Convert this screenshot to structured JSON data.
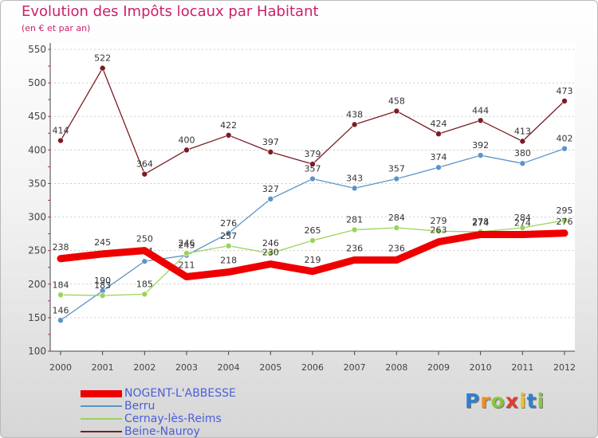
{
  "header": {
    "title": "Evolution des Impôts locaux par Habitant",
    "subtitle": "(en € et par an)"
  },
  "chart_data": {
    "type": "line",
    "title": "Evolution des Impôts locaux par Habitant",
    "subtitle": "(en € et par an)",
    "xlabel": "",
    "ylabel": "",
    "ylim": [
      100,
      550
    ],
    "yticks": [
      100,
      150,
      200,
      250,
      300,
      350,
      400,
      450,
      500,
      550
    ],
    "grid": "horizontal dashed",
    "legend_position": "bottom-left",
    "x": [
      "2000",
      "2001",
      "2002",
      "2003",
      "2004",
      "2005",
      "2006",
      "2007",
      "2008",
      "2009",
      "2010",
      "2011",
      "2012"
    ],
    "series": [
      {
        "name": "Beine-Nauroy",
        "color": "#7b1c24",
        "values": [
          414,
          522,
          364,
          400,
          422,
          397,
          379,
          438,
          458,
          424,
          444,
          413,
          473
        ]
      },
      {
        "name": "Berru",
        "color": "#5b94c8",
        "values": [
          146,
          190,
          234,
          243,
          276,
          327,
          357,
          343,
          357,
          374,
          392,
          380,
          402
        ]
      },
      {
        "name": "Cernay-lès-Reims",
        "color": "#99d35a",
        "values": [
          184,
          183,
          185,
          246,
          257,
          246,
          265,
          281,
          284,
          279,
          278,
          284,
          295
        ]
      },
      {
        "name": "NOGENT-L'ABBESSE",
        "color": "#ee0000",
        "values": [
          238,
          245,
          250,
          211,
          218,
          230,
          219,
          236,
          236,
          263,
          274,
          274,
          276
        ]
      }
    ],
    "legend": [
      "NOGENT-L'ABBESSE",
      "Berru",
      "Cernay-lès-Reims",
      "Beine-Nauroy"
    ]
  },
  "logo": {
    "letters": [
      "P",
      "r",
      "o",
      "x",
      "i",
      "t",
      "i"
    ]
  }
}
